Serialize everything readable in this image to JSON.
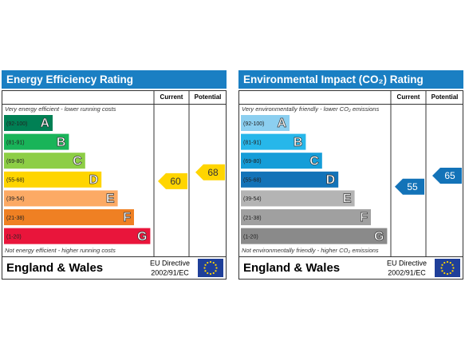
{
  "panels": [
    {
      "title": "Energy Efficiency Rating",
      "columns": [
        "Current",
        "Potential"
      ],
      "top_note": "Very energy efficient - lower running costs",
      "bottom_note": "Not energy efficient - higher running costs",
      "bands": [
        {
          "range": "(92-100)",
          "letter": "A",
          "color": "#008054"
        },
        {
          "range": "(81-91)",
          "letter": "B",
          "color": "#19b459"
        },
        {
          "range": "(69-80)",
          "letter": "C",
          "color": "#8dce46"
        },
        {
          "range": "(55-68)",
          "letter": "D",
          "color": "#ffd500"
        },
        {
          "range": "(39-54)",
          "letter": "E",
          "color": "#fcaa65"
        },
        {
          "range": "(21-38)",
          "letter": "F",
          "color": "#ef8023"
        },
        {
          "range": "(1-20)",
          "letter": "G",
          "color": "#e9153b"
        }
      ],
      "current": 60,
      "potential": 68,
      "region": "England & Wales",
      "directive": [
        "EU Directive",
        "2002/91/EC"
      ]
    },
    {
      "title": "Environmental Impact (CO₂) Rating",
      "columns": [
        "Current",
        "Potential"
      ],
      "top_note": "Very environmentally friendly - lower CO₂ emissions",
      "bottom_note": "Not environmentally friendly - higher CO₂ emissions",
      "bands": [
        {
          "range": "(92-100)",
          "letter": "A",
          "color": "#8ccff0"
        },
        {
          "range": "(81-91)",
          "letter": "B",
          "color": "#27b7ea"
        },
        {
          "range": "(69-80)",
          "letter": "C",
          "color": "#159dd8"
        },
        {
          "range": "(55-68)",
          "letter": "D",
          "color": "#1373b8"
        },
        {
          "range": "(39-54)",
          "letter": "E",
          "color": "#b4b4b4"
        },
        {
          "range": "(21-38)",
          "letter": "F",
          "color": "#a0a0a0"
        },
        {
          "range": "(1-20)",
          "letter": "G",
          "color": "#8a8a8a"
        }
      ],
      "current": 55,
      "potential": 65,
      "region": "England & Wales",
      "directive": [
        "EU Directive",
        "2002/91/EC"
      ]
    }
  ]
}
